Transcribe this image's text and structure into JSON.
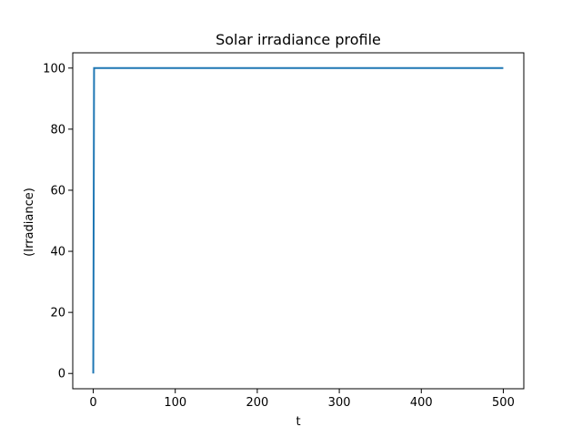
{
  "chart_data": {
    "type": "line",
    "title": "Solar irradiance profile",
    "xlabel": "t",
    "ylabel": "(Irradiance)",
    "xlim": [
      -25,
      525
    ],
    "ylim": [
      -5,
      105
    ],
    "x_ticks": [
      0,
      100,
      200,
      300,
      400,
      500
    ],
    "y_ticks": [
      0,
      20,
      40,
      60,
      80,
      100
    ],
    "grid": false,
    "series": [
      {
        "color": "#1f77b4",
        "x": [
          0,
          1,
          500
        ],
        "y": [
          0,
          100,
          100
        ]
      }
    ]
  }
}
